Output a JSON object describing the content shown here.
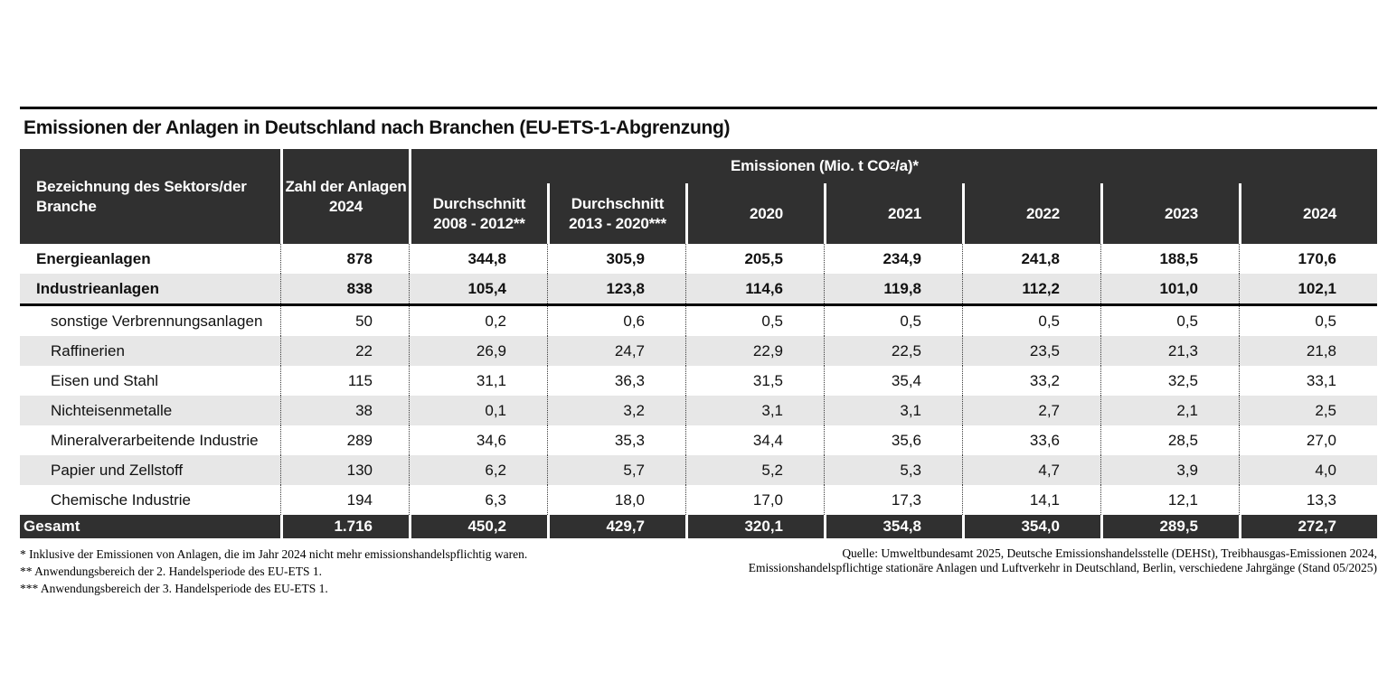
{
  "title": "Emissionen der Anlagen in Deutschland nach Branchen (EU-ETS-1-Abgrenzung)",
  "colors": {
    "header_bg": "#303030",
    "stripe_bg": "#e7e7e7",
    "total_bg": "#303030",
    "rule": "#000000"
  },
  "table": {
    "header": {
      "sector": "Bezeichnung des Sektors/der Branche",
      "plants_line1": "Zahl der Anlagen",
      "plants_line2": "2024",
      "emissions_pre": "Emissionen (Mio. t CO",
      "emissions_sub": "2",
      "emissions_post": "/a)*",
      "periods": [
        {
          "line1": "Durchschnitt",
          "line2": "2008 - 2012**"
        },
        {
          "line1": "Durchschnitt",
          "line2": "2013 - 2020***"
        }
      ],
      "years": [
        "2020",
        "2021",
        "2022",
        "2023",
        "2024"
      ]
    },
    "rows": [
      {
        "name": "Energieanlagen",
        "plants": "878",
        "values": [
          "344,8",
          "305,9",
          "205,5",
          "234,9",
          "241,8",
          "188,5",
          "170,6"
        ]
      },
      {
        "name": "Industrieanlagen",
        "plants": "838",
        "values": [
          "105,4",
          "123,8",
          "114,6",
          "119,8",
          "112,2",
          "101,0",
          "102,1"
        ]
      },
      {
        "name": "sonstige Verbrennungsanlagen",
        "plants": "50",
        "values": [
          "0,2",
          "0,6",
          "0,5",
          "0,5",
          "0,5",
          "0,5",
          "0,5"
        ]
      },
      {
        "name": "Raffinerien",
        "plants": "22",
        "values": [
          "26,9",
          "24,7",
          "22,9",
          "22,5",
          "23,5",
          "21,3",
          "21,8"
        ]
      },
      {
        "name": "Eisen und Stahl",
        "plants": "115",
        "values": [
          "31,1",
          "36,3",
          "31,5",
          "35,4",
          "33,2",
          "32,5",
          "33,1"
        ]
      },
      {
        "name": "Nichteisenmetalle",
        "plants": "38",
        "values": [
          "0,1",
          "3,2",
          "3,1",
          "3,1",
          "2,7",
          "2,1",
          "2,5"
        ]
      },
      {
        "name": "Mineralverarbeitende Industrie",
        "plants": "289",
        "values": [
          "34,6",
          "35,3",
          "34,4",
          "35,6",
          "33,6",
          "28,5",
          "27,0"
        ]
      },
      {
        "name": "Papier und Zellstoff",
        "plants": "130",
        "values": [
          "6,2",
          "5,7",
          "5,2",
          "5,3",
          "4,7",
          "3,9",
          "4,0"
        ]
      },
      {
        "name": "Chemische Industrie",
        "plants": "194",
        "values": [
          "6,3",
          "18,0",
          "17,0",
          "17,3",
          "14,1",
          "12,1",
          "13,3"
        ]
      }
    ],
    "total": {
      "name": "Gesamt",
      "plants": "1.716",
      "values": [
        "450,2",
        "429,7",
        "320,1",
        "354,8",
        "354,0",
        "289,5",
        "272,7"
      ]
    }
  },
  "footnotes": [
    "* Inklusive der Emissionen von Anlagen, die im Jahr 2024 nicht mehr emissionshandelspflichtig waren.",
    "** Anwendungsbereich der 2. Handelsperiode des EU-ETS 1.",
    "*** Anwendungsbereich der 3. Handelsperiode des EU-ETS 1."
  ],
  "source": [
    "Quelle: Umweltbundesamt 2025, Deutsche Emissionshandelsstelle (DEHSt), Treibhausgas-Emissionen 2024,",
    "Emissionshandelspflichtige stationäre Anlagen und Luftverkehr in Deutschland, Berlin, verschiedene Jahrgänge (Stand 05/2025)"
  ],
  "chart_data": {
    "type": "table",
    "title": "Emissionen der Anlagen in Deutschland nach Branchen (EU-ETS-1-Abgrenzung)",
    "unit": "Emissionen (Mio. t CO2/a)*",
    "columns": [
      "Bezeichnung des Sektors/der Branche",
      "Zahl der Anlagen 2024",
      "Durchschnitt 2008 - 2012**",
      "Durchschnitt 2013 - 2020***",
      "2020",
      "2021",
      "2022",
      "2023",
      "2024"
    ],
    "rows": [
      [
        "Energieanlagen",
        878,
        344.8,
        305.9,
        205.5,
        234.9,
        241.8,
        188.5,
        170.6
      ],
      [
        "Industrieanlagen",
        838,
        105.4,
        123.8,
        114.6,
        119.8,
        112.2,
        101.0,
        102.1
      ],
      [
        "sonstige Verbrennungsanlagen",
        50,
        0.2,
        0.6,
        0.5,
        0.5,
        0.5,
        0.5,
        0.5
      ],
      [
        "Raffinerien",
        22,
        26.9,
        24.7,
        22.9,
        22.5,
        23.5,
        21.3,
        21.8
      ],
      [
        "Eisen und Stahl",
        115,
        31.1,
        36.3,
        31.5,
        35.4,
        33.2,
        32.5,
        33.1
      ],
      [
        "Nichteisenmetalle",
        38,
        0.1,
        3.2,
        3.1,
        3.1,
        2.7,
        2.1,
        2.5
      ],
      [
        "Mineralverarbeitende Industrie",
        289,
        34.6,
        35.3,
        34.4,
        35.6,
        33.6,
        28.5,
        27.0
      ],
      [
        "Papier und Zellstoff",
        130,
        6.2,
        5.7,
        5.2,
        5.3,
        4.7,
        3.9,
        4.0
      ],
      [
        "Chemische Industrie",
        194,
        6.3,
        18.0,
        17.0,
        17.3,
        14.1,
        12.1,
        13.3
      ],
      [
        "Gesamt",
        1716,
        450.2,
        429.7,
        320.1,
        354.8,
        354.0,
        289.5,
        272.7
      ]
    ]
  }
}
